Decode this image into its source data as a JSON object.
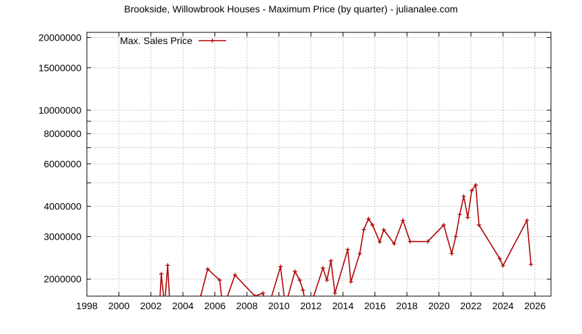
{
  "chart_data": {
    "type": "line",
    "title": "Brookside, Willowbrook Houses - Maximum Price (by quarter) - julianalee.com",
    "xlabel": "",
    "ylabel": "",
    "x_scale": "linear",
    "y_scale": "log",
    "xlim": [
      1998,
      2027
    ],
    "ylim": [
      1700000,
      21000000
    ],
    "x_ticks": [
      1998,
      2000,
      2002,
      2004,
      2006,
      2008,
      2010,
      2012,
      2014,
      2016,
      2018,
      2020,
      2022,
      2024,
      2026
    ],
    "y_ticks": [
      {
        "value": 2000000,
        "label": "2000000"
      },
      {
        "value": 3000000,
        "label": "3000000"
      },
      {
        "value": 4000000,
        "label": "4000000"
      },
      {
        "value": 5000000,
        "label": ""
      },
      {
        "value": 6000000,
        "label": "6000000"
      },
      {
        "value": 7000000,
        "label": ""
      },
      {
        "value": 8000000,
        "label": "8000000"
      },
      {
        "value": 9000000,
        "label": ""
      },
      {
        "value": 10000000,
        "label": "10000000"
      },
      {
        "value": 15000000,
        "label": "15000000"
      },
      {
        "value": 20000000,
        "label": "20000000"
      }
    ],
    "grid": true,
    "legend_position": "top-left",
    "series": [
      {
        "name": "Max. Sales Price",
        "color": "#b00000",
        "points": [
          [
            2002.55,
            1600000
          ],
          [
            2002.65,
            2100000
          ],
          [
            2002.85,
            1550000
          ],
          [
            2003.05,
            2280000
          ],
          [
            2003.2,
            1500000
          ],
          [
            2005.1,
            1690000
          ],
          [
            2005.55,
            2200000
          ],
          [
            2006.3,
            1980000
          ],
          [
            2006.5,
            1500000
          ],
          [
            2007.25,
            2080000
          ],
          [
            2008.5,
            1700000
          ],
          [
            2009.0,
            1750000
          ],
          [
            2009.3,
            1500000
          ],
          [
            2010.1,
            2250000
          ],
          [
            2010.4,
            1550000
          ],
          [
            2011.0,
            2150000
          ],
          [
            2011.3,
            1980000
          ],
          [
            2011.5,
            1800000
          ],
          [
            2011.75,
            1500000
          ],
          [
            2012.15,
            1680000
          ],
          [
            2012.75,
            2220000
          ],
          [
            2013.0,
            1980000
          ],
          [
            2013.25,
            2380000
          ],
          [
            2013.5,
            1750000
          ],
          [
            2014.3,
            2650000
          ],
          [
            2014.5,
            1950000
          ],
          [
            2015.05,
            2550000
          ],
          [
            2015.3,
            3200000
          ],
          [
            2015.6,
            3550000
          ],
          [
            2015.85,
            3350000
          ],
          [
            2016.3,
            2850000
          ],
          [
            2016.55,
            3200000
          ],
          [
            2017.2,
            2800000
          ],
          [
            2017.75,
            3500000
          ],
          [
            2018.2,
            2860000
          ],
          [
            2019.3,
            2860000
          ],
          [
            2020.3,
            3350000
          ],
          [
            2020.8,
            2550000
          ],
          [
            2021.05,
            3000000
          ],
          [
            2021.3,
            3700000
          ],
          [
            2021.55,
            4400000
          ],
          [
            2021.8,
            3600000
          ],
          [
            2022.05,
            4650000
          ],
          [
            2022.3,
            4900000
          ],
          [
            2022.5,
            3350000
          ],
          [
            2023.8,
            2430000
          ],
          [
            2024.0,
            2270000
          ],
          [
            2025.5,
            3500000
          ],
          [
            2025.75,
            2300000
          ]
        ]
      }
    ]
  }
}
